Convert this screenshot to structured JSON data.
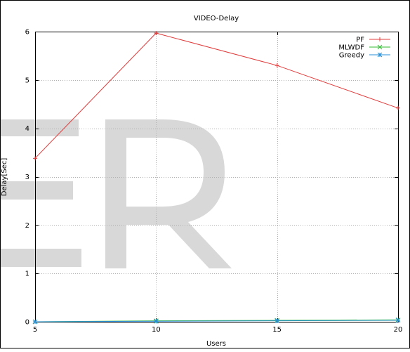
{
  "chart_data": {
    "type": "line",
    "title": "VIDEO-Delay",
    "xlabel": "Users",
    "ylabel": "Delay[Sec]",
    "x": [
      5,
      10,
      15,
      20
    ],
    "xlim": [
      5,
      20
    ],
    "ylim": [
      0,
      6
    ],
    "x_ticks": [
      "5",
      "10",
      "15",
      "20"
    ],
    "y_ticks": [
      "0",
      "1",
      "2",
      "3",
      "4",
      "5",
      "6"
    ],
    "grid": true,
    "legend_position": "top-right",
    "series": [
      {
        "name": "PF",
        "values": [
          3.38,
          5.97,
          5.3,
          4.42
        ],
        "color": "#e03c3c",
        "marker": "plus"
      },
      {
        "name": "MLWDF",
        "values": [
          0.0,
          0.02,
          0.03,
          0.04
        ],
        "color": "#33bb33",
        "marker": "cross"
      },
      {
        "name": "Greedy",
        "values": [
          0.0,
          0.01,
          0.02,
          0.03
        ],
        "color": "#2a8fd8",
        "marker": "star"
      }
    ]
  },
  "watermark": "ER"
}
